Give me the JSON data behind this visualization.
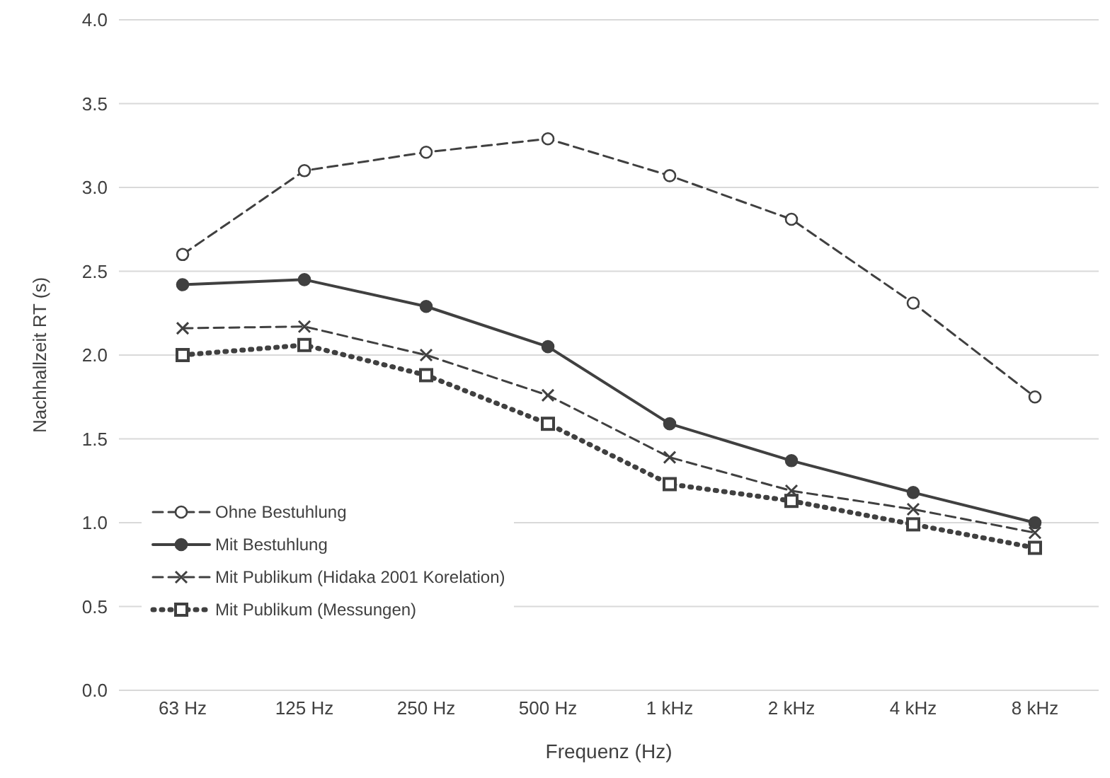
{
  "chart_data": {
    "type": "line",
    "xlabel": "Frequenz (Hz)",
    "ylabel": "Nachhallzeit RT (s)",
    "categories": [
      "63 Hz",
      "125 Hz",
      "250 Hz",
      "500 Hz",
      "1 kHz",
      "2 kHz",
      "4 kHz",
      "8 kHz"
    ],
    "ylim": [
      0,
      4
    ],
    "yticks": [
      {
        "value": 0,
        "label": "0.0"
      },
      {
        "value": 0.5,
        "label": "0.5"
      },
      {
        "value": 1,
        "label": "1.0"
      },
      {
        "value": 1.5,
        "label": "1.5"
      },
      {
        "value": 2,
        "label": "2.0"
      },
      {
        "value": 2.5,
        "label": "2.5"
      },
      {
        "value": 3,
        "label": "3.0"
      },
      {
        "value": 3.5,
        "label": "3.5"
      },
      {
        "value": 4,
        "label": "4.0"
      }
    ],
    "grid": "y",
    "legend": "bottom left",
    "series": [
      {
        "name": "Ohne Bestuhlung",
        "color": "#404040",
        "marker": "circle",
        "line_style": "dashed",
        "values": [
          2.6,
          3.1,
          3.21,
          3.29,
          3.07,
          2.81,
          2.31,
          1.75
        ]
      },
      {
        "name": "Mit Bestuhlung",
        "color": "#404040",
        "marker": "circle",
        "line_style": "solid",
        "values": [
          2.42,
          2.45,
          2.29,
          2.05,
          1.59,
          1.37,
          1.18,
          1.0
        ]
      },
      {
        "name": "Mit Publikum (Hidaka 2001 Korelation)",
        "color": "#404040",
        "marker": "cross",
        "line_style": "dashed",
        "values": [
          2.16,
          2.17,
          2.0,
          1.76,
          1.39,
          1.19,
          1.08,
          0.94
        ]
      },
      {
        "name": "Mit Publikum (Messungen)",
        "color": "#404040",
        "marker": "square",
        "line_style": "dotted",
        "values": [
          2.0,
          2.06,
          1.88,
          1.59,
          1.23,
          1.13,
          0.99,
          0.85
        ]
      }
    ]
  }
}
